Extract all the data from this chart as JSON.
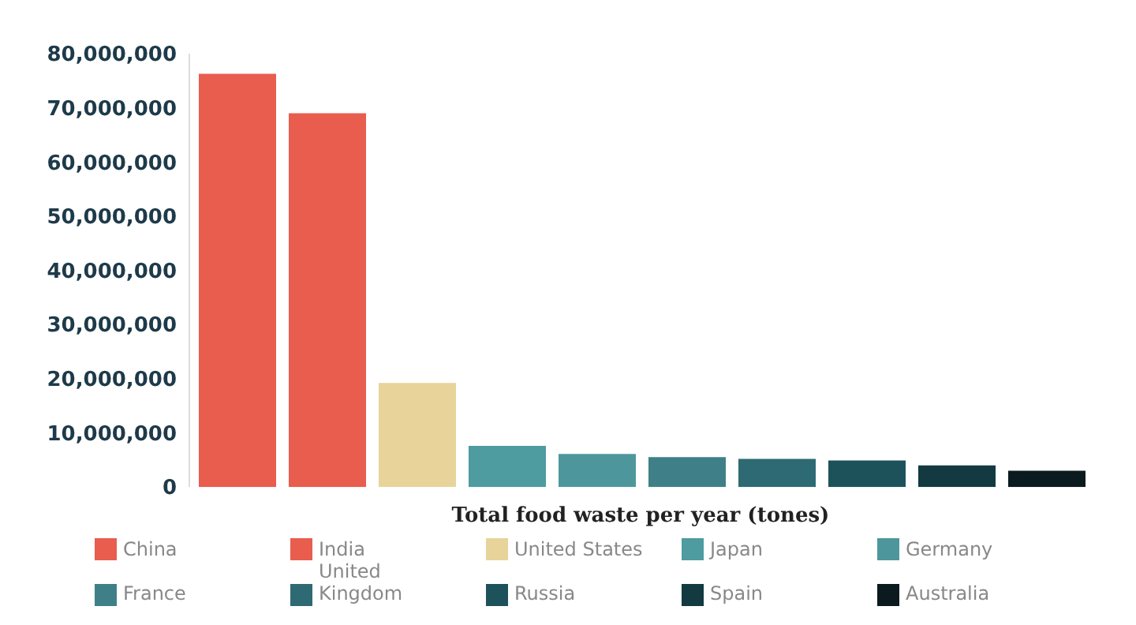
{
  "chart_data": {
    "type": "bar",
    "xlabel": "Total food waste per year (tones)",
    "categories": [
      null
    ],
    "series": [
      {
        "name": "China",
        "color": "#e85d4e",
        "values": [
          76300000
        ]
      },
      {
        "name": "India",
        "color": "#e85d4e",
        "values": [
          69000000
        ]
      },
      {
        "name": "United States",
        "color": "#e8d49a",
        "values": [
          19200000
        ]
      },
      {
        "name": "Japan",
        "color": "#4e9ba0",
        "values": [
          7600000
        ]
      },
      {
        "name": "Germany",
        "color": "#4d979c",
        "values": [
          6100000
        ]
      },
      {
        "name": "France",
        "color": "#3f8088",
        "values": [
          5500000
        ]
      },
      {
        "name": "United Kingdom",
        "color": "#2e6a73",
        "values": [
          5200000
        ]
      },
      {
        "name": "Russia",
        "color": "#1e525b",
        "values": [
          4900000
        ]
      },
      {
        "name": "Spain",
        "color": "#123a40",
        "values": [
          4000000
        ]
      },
      {
        "name": "Australia",
        "color": "#0a1a1e",
        "values": [
          3000000
        ]
      }
    ],
    "ylim": [
      0,
      80000000
    ],
    "yticks": [
      {
        "value": 0,
        "label": "0"
      },
      {
        "value": 10000000,
        "label": "10,000,000"
      },
      {
        "value": 20000000,
        "label": "20,000,000"
      },
      {
        "value": 30000000,
        "label": "30,000,000"
      },
      {
        "value": 40000000,
        "label": "40,000,000"
      },
      {
        "value": 50000000,
        "label": "50,000,000"
      },
      {
        "value": 60000000,
        "label": "60,000,000"
      },
      {
        "value": 70000000,
        "label": "70,000,000"
      },
      {
        "value": 80000000,
        "label": "80,000,000"
      }
    ],
    "grid": false,
    "legend": "bottom"
  }
}
